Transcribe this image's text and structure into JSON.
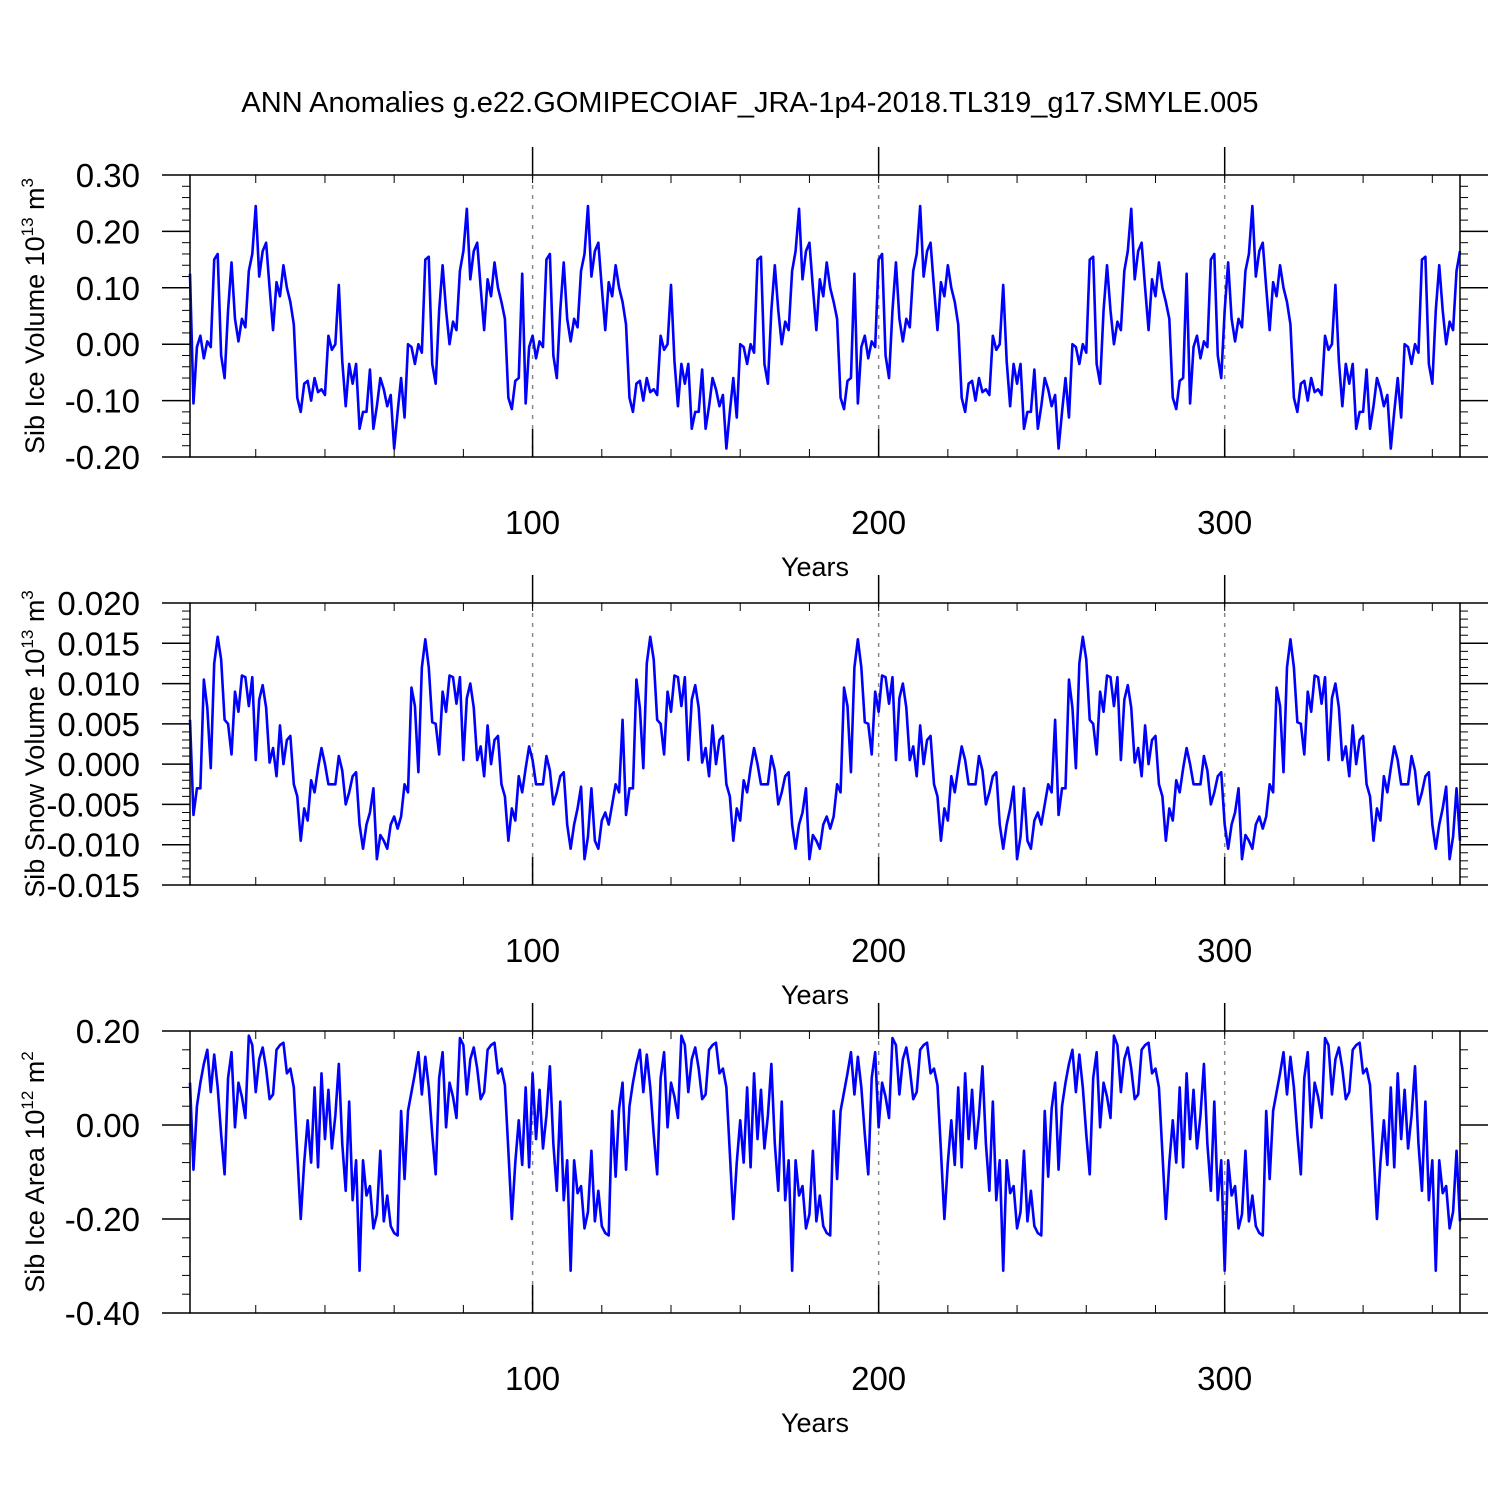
{
  "title": "ANN Anomalies g.e22.GOMIPECOIAF_JRA-1p4-2018.TL319_g17.SMYLE.005",
  "line_color": "#0000ff",
  "grid_color": "#888888",
  "chart_data": [
    {
      "type": "line",
      "ylabel": "Sib Ice Volume 10",
      "ylabel_exp": "13",
      "ylabel_unit": " m",
      "ylabel_unit_exp": "3",
      "xlabel": "Years",
      "xlim": [
        1,
        368
      ],
      "ylim": [
        -0.2,
        0.3
      ],
      "y_ticks": [
        -0.2,
        -0.1,
        0.0,
        0.1,
        0.2,
        0.3
      ],
      "y_tick_labels": [
        "-0.20",
        "-0.10",
        "0.00",
        "0.10",
        "0.20",
        "0.30"
      ],
      "y_minor_step": 0.02,
      "x_ticks": [
        100,
        200,
        300
      ],
      "x_tick_labels": [
        "100",
        "200",
        "300"
      ],
      "x_minor_step": 20,
      "grid_x": [
        100,
        200,
        300
      ],
      "cycle": [
        0.125,
        -0.105,
        -0.005,
        0.015,
        -0.025,
        0.005,
        -0.005,
        0.15,
        0.16,
        -0.02,
        -0.06,
        0.06,
        0.145,
        0.045,
        0.005,
        0.045,
        0.03,
        0.13,
        0.16,
        0.245,
        0.12,
        0.165,
        0.18,
        0.1,
        0.025,
        0.11,
        0.085,
        0.14,
        0.1,
        0.075,
        0.035,
        -0.095,
        -0.12,
        -0.07,
        -0.065,
        -0.1,
        -0.06,
        -0.085,
        -0.08,
        -0.09,
        0.015,
        -0.01,
        0.0,
        0.105,
        -0.03,
        -0.11,
        -0.035,
        -0.07,
        -0.035,
        -0.15,
        -0.12,
        -0.12,
        -0.045,
        -0.15,
        -0.11,
        -0.06,
        -0.08,
        -0.11,
        -0.09,
        -0.185,
        -0.12,
        -0.06,
        -0.13,
        0.0,
        -0.005,
        -0.035,
        0.0,
        -0.015,
        0.15,
        0.155,
        -0.035,
        -0.07,
        0.06,
        0.14,
        0.06,
        0.0,
        0.04,
        0.025,
        0.13,
        0.165,
        0.24,
        0.115,
        0.165,
        0.18,
        0.1,
        0.025,
        0.115,
        0.085,
        0.145,
        0.1,
        0.075,
        0.045,
        -0.095,
        -0.115,
        -0.065,
        -0.06
      ],
      "series": [
        {
          "name": "Sib Ice Volume",
          "start": 1,
          "length": 368,
          "source": "cycle"
        }
      ]
    },
    {
      "type": "line",
      "ylabel": "Sib Snow Volume 10",
      "ylabel_exp": "13",
      "ylabel_unit": " m",
      "ylabel_unit_exp": "3",
      "xlabel": "Years",
      "xlim": [
        1,
        368
      ],
      "ylim": [
        -0.015,
        0.02
      ],
      "y_ticks": [
        -0.015,
        -0.01,
        -0.005,
        0.0,
        0.005,
        0.01,
        0.015,
        0.02
      ],
      "y_tick_labels": [
        "-0.015",
        "-0.010",
        "-0.005",
        "0.000",
        "0.005",
        "0.010",
        "0.015",
        "0.020"
      ],
      "y_minor_step": 0.001,
      "x_ticks": [
        100,
        200,
        300
      ],
      "x_tick_labels": [
        "100",
        "200",
        "300"
      ],
      "x_minor_step": 20,
      "grid_x": [
        100,
        200,
        300
      ],
      "cycle": [
        0.0055,
        -0.0063,
        -0.003,
        -0.003,
        0.0105,
        0.007,
        -0.0005,
        0.0125,
        0.0158,
        0.013,
        0.0055,
        0.005,
        0.0012,
        0.009,
        0.0065,
        0.011,
        0.0108,
        0.0072,
        0.0108,
        0.0005,
        0.008,
        0.0098,
        0.007,
        0.0002,
        0.002,
        -0.0015,
        0.0048,
        0.0,
        0.003,
        0.0035,
        -0.0025,
        -0.004,
        -0.0095,
        -0.0055,
        -0.007,
        -0.002,
        -0.0035,
        -0.0005,
        0.002,
        0.0,
        -0.0025,
        -0.0025,
        -0.0025,
        0.001,
        -0.0008,
        -0.005,
        -0.0035,
        -0.0015,
        -0.001,
        -0.0075,
        -0.0105,
        -0.0075,
        -0.006,
        -0.003,
        -0.0118,
        -0.0088,
        -0.0095,
        -0.0105,
        -0.0075,
        -0.0065,
        -0.008,
        -0.0065,
        -0.0025,
        -0.0035,
        0.0095,
        0.0072,
        -0.001,
        0.012,
        0.0155,
        0.012,
        0.0052,
        0.005,
        0.0012,
        0.009,
        0.0065,
        0.011,
        0.0108,
        0.0075,
        0.0108,
        0.0005,
        0.0082,
        0.01,
        0.007,
        0.0005,
        0.0022,
        -0.0015,
        0.0048,
        0.0,
        0.003,
        0.0035,
        -0.0025,
        -0.004,
        -0.0095,
        -0.0055,
        -0.007,
        -0.0015,
        -0.0035,
        -0.0005,
        0.0022,
        0.0005,
        -0.0025,
        -0.0025,
        -0.0025,
        0.001,
        -0.0008,
        -0.005,
        -0.0035,
        -0.0015,
        -0.001,
        -0.0075,
        -0.0105,
        -0.0075,
        -0.0055,
        -0.0028,
        -0.0118,
        -0.009,
        -0.003,
        -0.0095,
        -0.0105,
        -0.007,
        -0.006,
        -0.0075,
        -0.005,
        -0.0025,
        -0.0035
      ],
      "series": [
        {
          "name": "Sib Snow Volume",
          "start": 1,
          "length": 368,
          "source": "cycle"
        }
      ]
    },
    {
      "type": "line",
      "ylabel": "Sib Ice Area 10",
      "ylabel_exp": "12",
      "ylabel_unit": " m",
      "ylabel_unit_exp": "2",
      "xlabel": "Years",
      "xlim": [
        1,
        368
      ],
      "ylim": [
        -0.4,
        0.2
      ],
      "y_ticks": [
        -0.4,
        -0.2,
        0.0,
        0.2
      ],
      "y_tick_labels": [
        "-0.40",
        "-0.20",
        "0.00",
        "0.20"
      ],
      "y_minor_step": 0.04,
      "x_ticks": [
        100,
        200,
        300
      ],
      "x_tick_labels": [
        "100",
        "200",
        "300"
      ],
      "x_minor_step": 20,
      "grid_x": [
        100,
        200,
        300
      ],
      "cycle": [
        0.09,
        -0.095,
        0.04,
        0.09,
        0.13,
        0.16,
        0.07,
        0.15,
        0.08,
        -0.02,
        -0.105,
        0.1,
        0.155,
        -0.005,
        0.09,
        0.06,
        0.015,
        0.19,
        0.17,
        0.07,
        0.14,
        0.165,
        0.12,
        0.055,
        0.065,
        0.16,
        0.17,
        0.175,
        0.11,
        0.12,
        0.08,
        -0.06,
        -0.2,
        -0.08,
        0.01,
        -0.08,
        0.08,
        -0.09,
        0.11,
        -0.03,
        0.075,
        -0.05,
        0.02,
        0.13,
        -0.04,
        -0.14,
        0.05,
        -0.16,
        -0.075,
        -0.31,
        -0.075,
        -0.15,
        -0.13,
        -0.22,
        -0.19,
        -0.055,
        -0.205,
        -0.15,
        -0.215,
        -0.23,
        -0.235,
        0.03,
        -0.115,
        0.03,
        0.07,
        0.11,
        0.155,
        0.065,
        0.145,
        0.08,
        -0.02,
        -0.105,
        0.1,
        0.155,
        -0.005,
        0.09,
        0.06,
        0.015,
        0.185,
        0.17,
        0.065,
        0.14,
        0.165,
        0.12,
        0.055,
        0.07,
        0.16,
        0.17,
        0.175,
        0.11,
        0.12,
        0.085,
        -0.055,
        -0.2,
        -0.08,
        0.01,
        -0.085,
        0.08,
        -0.09,
        0.11,
        -0.03,
        0.075,
        -0.05,
        0.02,
        0.125,
        -0.04,
        -0.14,
        0.05,
        -0.16,
        -0.075,
        -0.31,
        -0.075,
        -0.145,
        -0.13,
        -0.22,
        -0.185,
        -0.055,
        -0.205,
        -0.14,
        -0.215,
        -0.23,
        -0.235,
        0.03,
        -0.11,
        0.035
      ],
      "series": [
        {
          "name": "Sib Ice Area",
          "start": 1,
          "length": 368,
          "source": "cycle"
        }
      ]
    }
  ]
}
